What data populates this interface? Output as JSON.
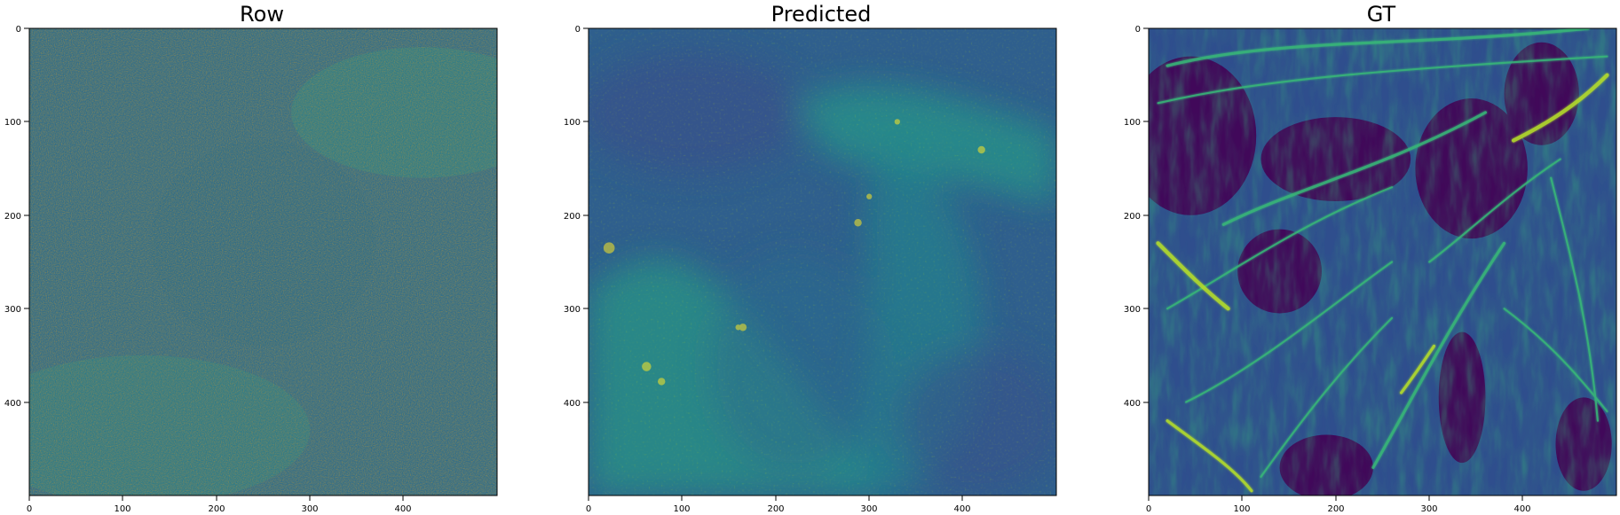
{
  "figure": {
    "panels": [
      {
        "title": "Row",
        "kind": "noisy-raw",
        "image_shape": [
          500,
          500
        ]
      },
      {
        "title": "Predicted",
        "kind": "smooth-denoised",
        "image_shape": [
          500,
          500
        ]
      },
      {
        "title": "GT",
        "kind": "fibrous-ground-truth",
        "image_shape": [
          500,
          500
        ]
      }
    ],
    "axis_ticks": {
      "x": [
        "0",
        "100",
        "200",
        "300",
        "400"
      ],
      "y": [
        "0",
        "100",
        "200",
        "300",
        "400"
      ]
    },
    "colormap": {
      "name": "viridis",
      "stops": [
        "#440154",
        "#482878",
        "#3e4989",
        "#31688e",
        "#26828e",
        "#1f9e89",
        "#35b779",
        "#6ece58",
        "#b5de2b",
        "#fde725"
      ]
    },
    "colors": {
      "axis": "#000000",
      "text": "#000000",
      "background": "#ffffff"
    }
  }
}
